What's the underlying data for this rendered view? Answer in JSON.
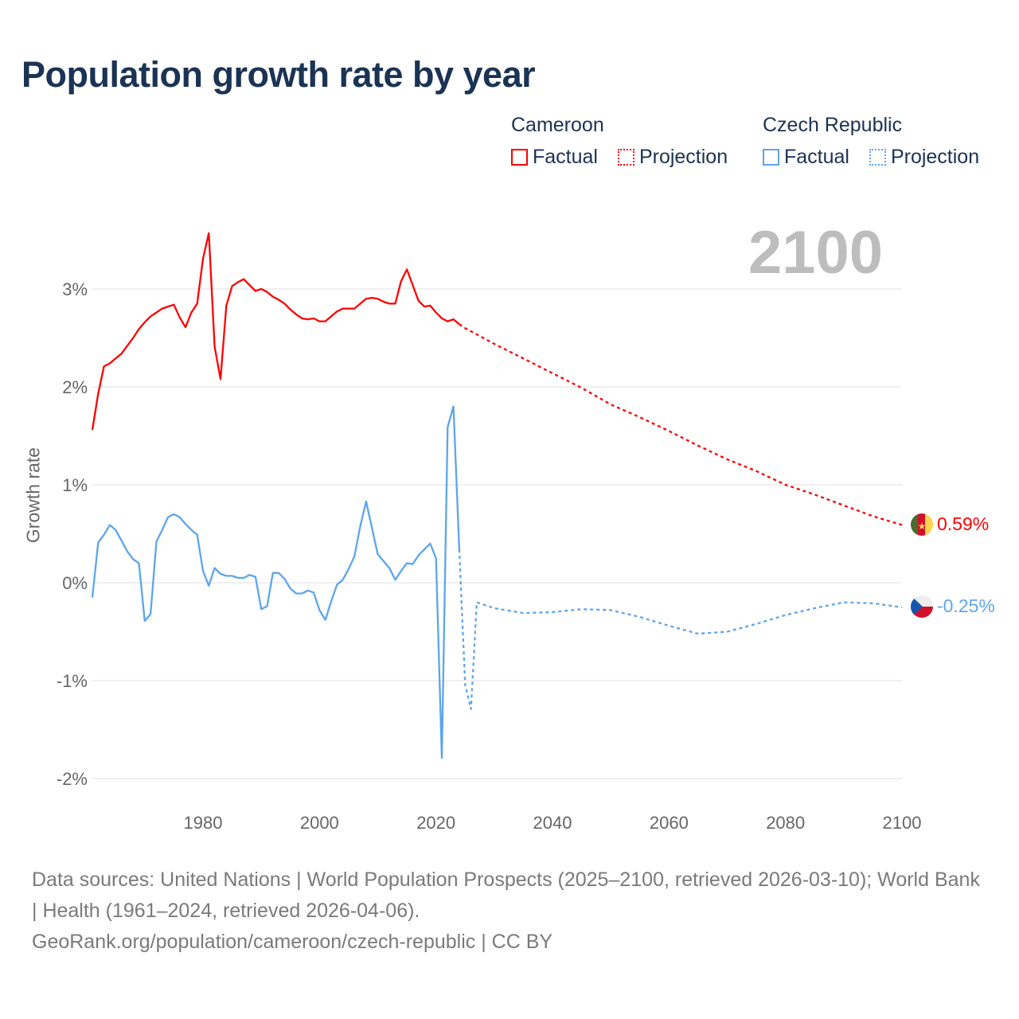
{
  "title": "Population growth rate by year",
  "current_year_label": "2100",
  "legend": {
    "groups": [
      {
        "name": "Cameroon",
        "color": "#ff0000",
        "items": [
          "Factual",
          "Projection"
        ]
      },
      {
        "name": "Czech Republic",
        "color": "#5ca5ec",
        "items": [
          "Factual",
          "Projection"
        ]
      }
    ]
  },
  "end_labels": {
    "cameroon": "0.59%",
    "czech": "-0.25%"
  },
  "footer": {
    "sources": "Data sources: United Nations | World Population Prospects (2025–2100, retrieved 2026-03-10); World Bank | Health (1961–2024, retrieved 2026-04-06).",
    "link": "GeoRank.org/population/cameroon/czech-republic | CC BY"
  },
  "chart_data": {
    "type": "line",
    "title": "Population growth rate by year",
    "xlabel": "",
    "ylabel": "Growth rate",
    "xlim": [
      1961,
      2100
    ],
    "ylim": [
      -2.2,
      3.8
    ],
    "x_ticks": [
      1980,
      2000,
      2020,
      2040,
      2060,
      2080,
      2100
    ],
    "y_ticks": [
      3,
      2,
      1,
      0,
      -1,
      -2
    ],
    "y_tick_labels": [
      "3%",
      "2%",
      "1%",
      "0%",
      "-1%",
      "-2%"
    ],
    "grid": true,
    "legend_position": "top-right",
    "series": [
      {
        "name": "Cameroon Factual",
        "color": "#ff0000",
        "style": "solid",
        "x": [
          1961,
          1962,
          1963,
          1964,
          1965,
          1966,
          1967,
          1968,
          1969,
          1970,
          1971,
          1972,
          1973,
          1974,
          1975,
          1976,
          1977,
          1978,
          1979,
          1980,
          1981,
          1982,
          1983,
          1984,
          1985,
          1986,
          1987,
          1988,
          1989,
          1990,
          1991,
          1992,
          1993,
          1994,
          1995,
          1996,
          1997,
          1998,
          1999,
          2000,
          2001,
          2002,
          2003,
          2004,
          2005,
          2006,
          2007,
          2008,
          2009,
          2010,
          2011,
          2012,
          2013,
          2014,
          2015,
          2016,
          2017,
          2018,
          2019,
          2020,
          2021,
          2022,
          2023,
          2024
        ],
        "y": [
          1.56,
          1.93,
          2.21,
          2.24,
          2.29,
          2.34,
          2.42,
          2.5,
          2.59,
          2.66,
          2.72,
          2.76,
          2.8,
          2.82,
          2.84,
          2.71,
          2.61,
          2.76,
          2.85,
          3.31,
          3.57,
          2.41,
          2.08,
          2.83,
          3.03,
          3.07,
          3.1,
          3.04,
          2.98,
          3.0,
          2.97,
          2.92,
          2.89,
          2.85,
          2.79,
          2.74,
          2.7,
          2.69,
          2.7,
          2.67,
          2.67,
          2.72,
          2.77,
          2.8,
          2.8,
          2.8,
          2.85,
          2.9,
          2.91,
          2.9,
          2.87,
          2.85,
          2.85,
          3.08,
          3.2,
          3.04,
          2.88,
          2.82,
          2.83,
          2.76,
          2.7,
          2.67,
          2.69,
          2.64
        ]
      },
      {
        "name": "Cameroon Projection",
        "color": "#ff0000",
        "style": "dotted",
        "x": [
          2024,
          2025,
          2030,
          2035,
          2040,
          2045,
          2050,
          2055,
          2060,
          2065,
          2070,
          2075,
          2080,
          2085,
          2090,
          2095,
          2100
        ],
        "y": [
          2.64,
          2.6,
          2.44,
          2.29,
          2.14,
          1.99,
          1.82,
          1.69,
          1.55,
          1.4,
          1.26,
          1.14,
          1.0,
          0.9,
          0.79,
          0.68,
          0.59
        ]
      },
      {
        "name": "Czech Republic Factual",
        "color": "#5ca5ec",
        "style": "solid",
        "x": [
          1961,
          1962,
          1963,
          1964,
          1965,
          1966,
          1967,
          1968,
          1969,
          1970,
          1971,
          1972,
          1973,
          1974,
          1975,
          1976,
          1977,
          1978,
          1979,
          1980,
          1981,
          1982,
          1983,
          1984,
          1985,
          1986,
          1987,
          1988,
          1989,
          1990,
          1991,
          1992,
          1993,
          1994,
          1995,
          1996,
          1997,
          1998,
          1999,
          2000,
          2001,
          2002,
          2003,
          2004,
          2005,
          2006,
          2007,
          2008,
          2009,
          2010,
          2011,
          2012,
          2013,
          2014,
          2015,
          2016,
          2017,
          2018,
          2019,
          2020,
          2021,
          2022,
          2023,
          2024
        ],
        "y": [
          -0.15,
          0.41,
          0.49,
          0.59,
          0.54,
          0.43,
          0.32,
          0.24,
          0.2,
          -0.39,
          -0.32,
          0.42,
          0.54,
          0.67,
          0.7,
          0.67,
          0.6,
          0.54,
          0.49,
          0.12,
          -0.03,
          0.15,
          0.09,
          0.07,
          0.07,
          0.05,
          0.05,
          0.08,
          0.06,
          -0.27,
          -0.24,
          0.1,
          0.1,
          0.04,
          -0.06,
          -0.11,
          -0.11,
          -0.08,
          -0.1,
          -0.28,
          -0.38,
          -0.19,
          -0.02,
          0.03,
          0.14,
          0.27,
          0.58,
          0.83,
          0.56,
          0.29,
          0.22,
          0.15,
          0.03,
          0.12,
          0.2,
          0.19,
          0.28,
          0.34,
          0.4,
          0.25,
          -1.79,
          1.59,
          1.8,
          0.34
        ]
      },
      {
        "name": "Czech Republic Projection",
        "color": "#5ca5ec",
        "style": "dotted",
        "x": [
          2024,
          2025,
          2026,
          2027,
          2030,
          2035,
          2040,
          2045,
          2050,
          2055,
          2060,
          2065,
          2070,
          2075,
          2080,
          2085,
          2090,
          2095,
          2100
        ],
        "y": [
          0.34,
          -1.04,
          -1.29,
          -0.2,
          -0.26,
          -0.31,
          -0.3,
          -0.27,
          -0.28,
          -0.35,
          -0.44,
          -0.52,
          -0.5,
          -0.42,
          -0.33,
          -0.26,
          -0.2,
          -0.21,
          -0.25
        ]
      }
    ]
  }
}
